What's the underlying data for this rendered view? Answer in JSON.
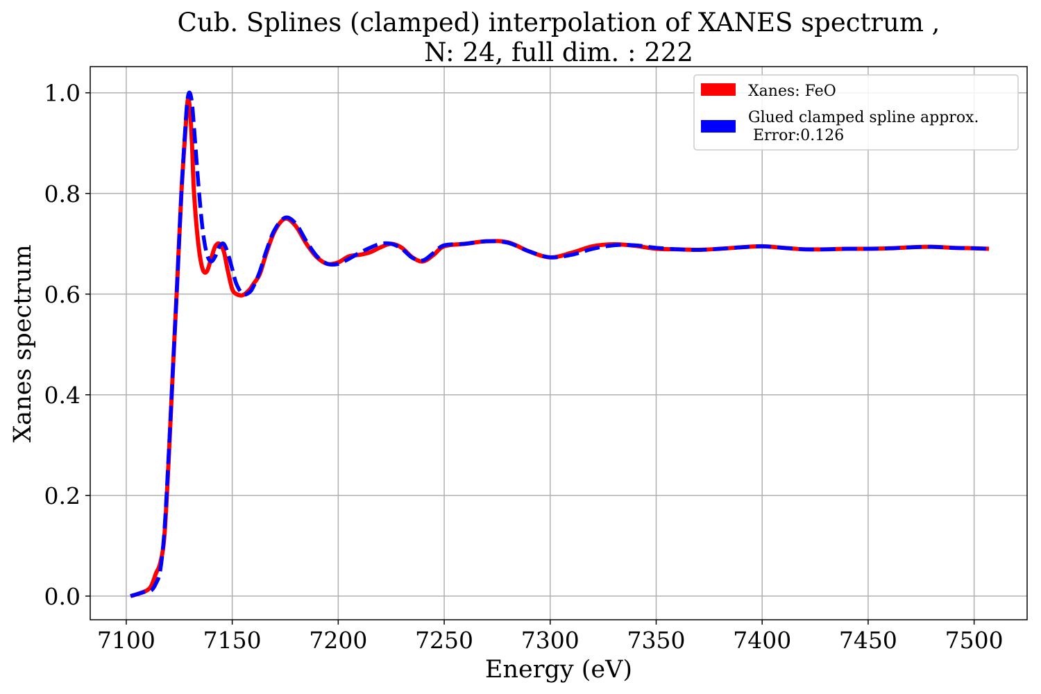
{
  "chart_data": {
    "type": "line",
    "title": "Cub. Splines (clamped) interpolation of XANES spectrum ,",
    "subtitle": "N: 24, full dim. : 222",
    "xlabel": "Energy (eV)",
    "ylabel": "Xanes spectrum",
    "xlim": [
      7083,
      7525
    ],
    "ylim": [
      -0.047,
      1.052
    ],
    "xticks": [
      7100,
      7150,
      7200,
      7250,
      7300,
      7350,
      7400,
      7450,
      7500
    ],
    "yticks": [
      0.0,
      0.2,
      0.4,
      0.6,
      0.8,
      1.0
    ],
    "xtick_labels": [
      "7100",
      "7150",
      "7200",
      "7250",
      "7300",
      "7350",
      "7400",
      "7450",
      "7500"
    ],
    "ytick_labels": [
      "0.0",
      "0.2",
      "0.4",
      "0.6",
      "0.8",
      "1.0"
    ],
    "grid": true,
    "legend_position": "top-right",
    "series": [
      {
        "name": "Xanes: FeO",
        "color": "#ff0000",
        "style": "solid",
        "x": [
          7102,
          7106,
          7110,
          7112,
          7114,
          7116,
          7118,
          7120,
          7122,
          7124,
          7126,
          7128,
          7129,
          7130,
          7131,
          7132,
          7134,
          7136,
          7138,
          7140,
          7142,
          7144,
          7146,
          7148,
          7150,
          7152,
          7155,
          7158,
          7160,
          7163,
          7166,
          7170,
          7175,
          7180,
          7185,
          7190,
          7195,
          7200,
          7205,
          7210,
          7215,
          7220,
          7225,
          7230,
          7235,
          7240,
          7245,
          7250,
          7260,
          7270,
          7280,
          7290,
          7300,
          7310,
          7320,
          7330,
          7340,
          7350,
          7360,
          7370,
          7380,
          7390,
          7400,
          7410,
          7420,
          7430,
          7440,
          7450,
          7460,
          7470,
          7480,
          7490,
          7500,
          7507
        ],
        "y": [
          0.0,
          0.005,
          0.012,
          0.022,
          0.045,
          0.065,
          0.12,
          0.27,
          0.45,
          0.62,
          0.8,
          0.93,
          0.985,
          0.97,
          0.9,
          0.8,
          0.7,
          0.65,
          0.645,
          0.67,
          0.695,
          0.7,
          0.685,
          0.645,
          0.61,
          0.6,
          0.598,
          0.608,
          0.62,
          0.64,
          0.68,
          0.725,
          0.75,
          0.735,
          0.7,
          0.673,
          0.66,
          0.663,
          0.675,
          0.678,
          0.683,
          0.693,
          0.7,
          0.692,
          0.673,
          0.665,
          0.678,
          0.695,
          0.7,
          0.705,
          0.703,
          0.685,
          0.673,
          0.682,
          0.695,
          0.699,
          0.696,
          0.69,
          0.689,
          0.688,
          0.69,
          0.693,
          0.695,
          0.692,
          0.689,
          0.689,
          0.69,
          0.69,
          0.691,
          0.693,
          0.694,
          0.692,
          0.691,
          0.69
        ]
      },
      {
        "name": "Glued clamped spline approx.\n Error:0.126",
        "color": "#0000ff",
        "style": "dashed",
        "x": [
          7102,
          7106,
          7110,
          7112,
          7114,
          7116,
          7118,
          7120,
          7122,
          7124,
          7126,
          7128,
          7129,
          7130,
          7131,
          7132,
          7134,
          7136,
          7138,
          7140,
          7142,
          7144,
          7146,
          7148,
          7150,
          7152,
          7155,
          7158,
          7160,
          7163,
          7166,
          7170,
          7175,
          7180,
          7185,
          7190,
          7195,
          7200,
          7205,
          7210,
          7215,
          7220,
          7225,
          7230,
          7235,
          7240,
          7245,
          7250,
          7260,
          7270,
          7280,
          7290,
          7300,
          7310,
          7320,
          7330,
          7340,
          7350,
          7360,
          7370,
          7380,
          7390,
          7400,
          7410,
          7420,
          7430,
          7440,
          7450,
          7460,
          7470,
          7480,
          7490,
          7500,
          7507
        ],
        "y": [
          0.0,
          0.005,
          0.01,
          0.012,
          0.025,
          0.05,
          0.13,
          0.28,
          0.45,
          0.62,
          0.8,
          0.94,
          0.99,
          1.0,
          0.98,
          0.93,
          0.82,
          0.73,
          0.68,
          0.665,
          0.675,
          0.695,
          0.7,
          0.68,
          0.65,
          0.62,
          0.6,
          0.603,
          0.615,
          0.645,
          0.685,
          0.728,
          0.752,
          0.74,
          0.705,
          0.675,
          0.66,
          0.66,
          0.67,
          0.682,
          0.692,
          0.7,
          0.7,
          0.69,
          0.672,
          0.667,
          0.682,
          0.697,
          0.7,
          0.705,
          0.702,
          0.685,
          0.673,
          0.678,
          0.69,
          0.697,
          0.697,
          0.692,
          0.689,
          0.688,
          0.69,
          0.693,
          0.695,
          0.692,
          0.689,
          0.689,
          0.69,
          0.69,
          0.691,
          0.693,
          0.694,
          0.692,
          0.691,
          0.69
        ]
      }
    ]
  }
}
